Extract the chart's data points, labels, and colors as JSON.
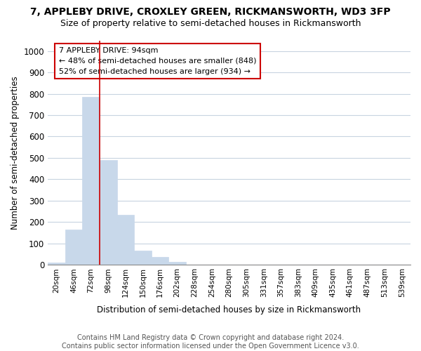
{
  "title1": "7, APPLEBY DRIVE, CROXLEY GREEN, RICKMANSWORTH, WD3 3FP",
  "title2": "Size of property relative to semi-detached houses in Rickmansworth",
  "xlabel": "Distribution of semi-detached houses by size in Rickmansworth",
  "ylabel": "Number of semi-detached properties",
  "footnote": "Contains HM Land Registry data © Crown copyright and database right 2024.\nContains public sector information licensed under the Open Government Licence v3.0.",
  "categories": [
    "20sqm",
    "46sqm",
    "72sqm",
    "98sqm",
    "124sqm",
    "150sqm",
    "176sqm",
    "202sqm",
    "228sqm",
    "254sqm",
    "280sqm",
    "305sqm",
    "331sqm",
    "357sqm",
    "383sqm",
    "409sqm",
    "435sqm",
    "461sqm",
    "487sqm",
    "513sqm",
    "539sqm"
  ],
  "values": [
    10,
    165,
    785,
    490,
    235,
    65,
    35,
    15,
    0,
    0,
    0,
    0,
    0,
    0,
    0,
    0,
    0,
    0,
    0,
    0,
    0
  ],
  "bar_color": "#c8d8ea",
  "bar_edge_color": "#c8d8ea",
  "property_line_index": 3,
  "annotation_line1": "7 APPLEBY DRIVE: 94sqm",
  "annotation_line2": "← 48% of semi-detached houses are smaller (848)",
  "annotation_line3": "52% of semi-detached houses are larger (934) →",
  "annotation_box_color": "#ffffff",
  "annotation_border_color": "#cc0000",
  "property_line_color": "#cc0000",
  "ylim": [
    0,
    1050
  ],
  "yticks": [
    0,
    100,
    200,
    300,
    400,
    500,
    600,
    700,
    800,
    900,
    1000
  ],
  "background_color": "#ffffff",
  "grid_color": "#c8d4e0",
  "title1_fontsize": 10,
  "title2_fontsize": 9,
  "footnote_fontsize": 7
}
